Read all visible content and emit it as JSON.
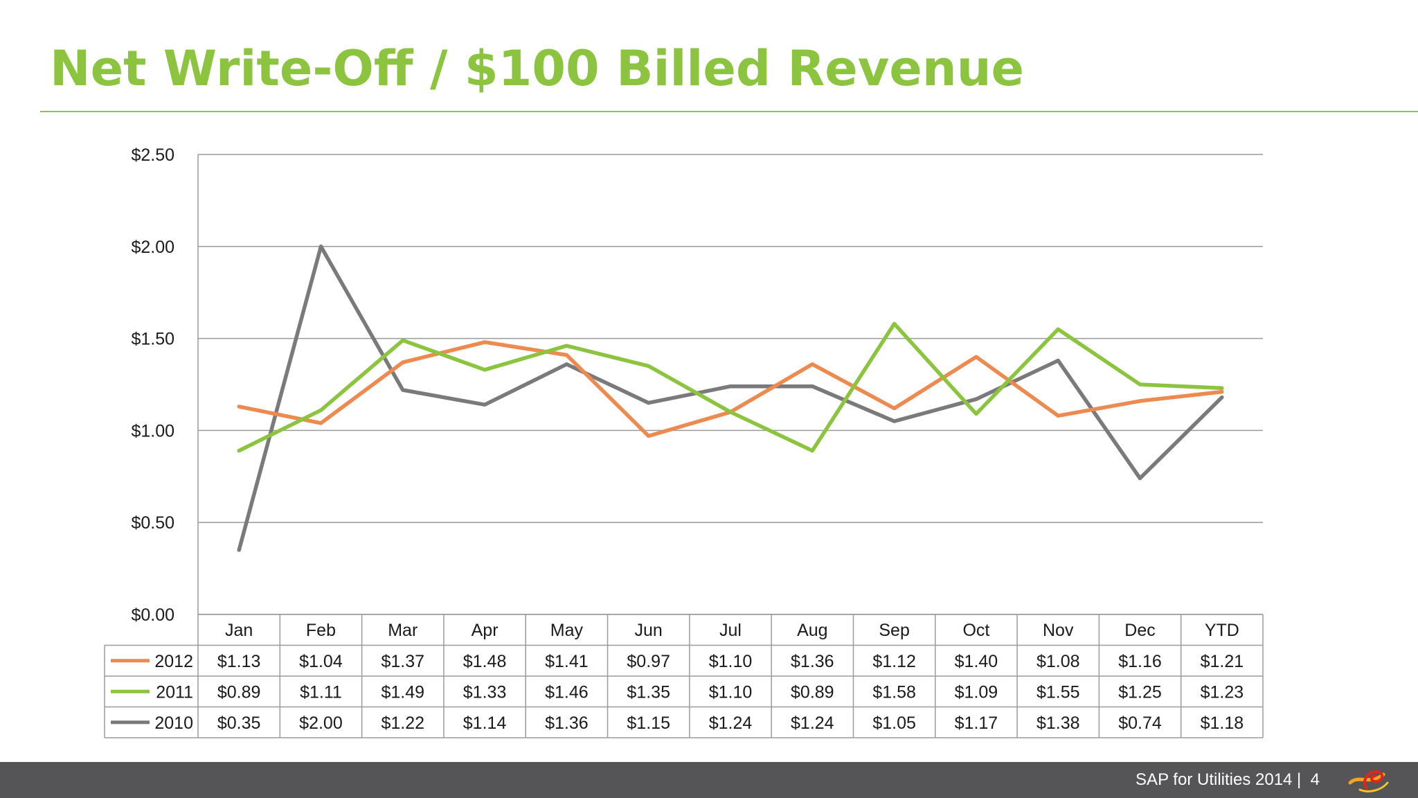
{
  "title": "Net Write-Off / $100 Billed Revenue",
  "footer": {
    "text": "SAP for Utilities 2014 |",
    "page_number": "4"
  },
  "colors": {
    "accent": "#8cc43f",
    "footer_bg": "#555557"
  },
  "chart_data": {
    "type": "line",
    "categories": [
      "Jan",
      "Feb",
      "Mar",
      "Apr",
      "May",
      "Jun",
      "Jul",
      "Aug",
      "Sep",
      "Oct",
      "Nov",
      "Dec",
      "YTD"
    ],
    "ylim": [
      0,
      2.5
    ],
    "yticks": [
      0,
      0.5,
      1.0,
      1.5,
      2.0,
      2.5
    ],
    "ytick_labels": [
      "$0.00",
      "$0.50",
      "$1.00",
      "$1.50",
      "$2.00",
      "$2.50"
    ],
    "grid": true,
    "legend_placement": "data-table-left",
    "series": [
      {
        "name": "2012",
        "color": "#ed8a4f",
        "values": [
          1.13,
          1.04,
          1.37,
          1.48,
          1.41,
          0.97,
          1.1,
          1.36,
          1.12,
          1.4,
          1.08,
          1.16,
          1.21
        ],
        "labels": [
          "$1.13",
          "$1.04",
          "$1.37",
          "$1.48",
          "$1.41",
          "$0.97",
          "$1.10",
          "$1.36",
          "$1.12",
          "$1.40",
          "$1.08",
          "$1.16",
          "$1.21"
        ]
      },
      {
        "name": "2011",
        "color": "#8cc43f",
        "values": [
          0.89,
          1.11,
          1.49,
          1.33,
          1.46,
          1.35,
          1.1,
          0.89,
          1.58,
          1.09,
          1.55,
          1.25,
          1.23
        ],
        "labels": [
          "$0.89",
          "$1.11",
          "$1.49",
          "$1.33",
          "$1.46",
          "$1.35",
          "$1.10",
          "$0.89",
          "$1.58",
          "$1.09",
          "$1.55",
          "$1.25",
          "$1.23"
        ]
      },
      {
        "name": "2010",
        "color": "#7a7a7c",
        "values": [
          0.35,
          2.0,
          1.22,
          1.14,
          1.36,
          1.15,
          1.24,
          1.24,
          1.05,
          1.17,
          1.38,
          0.74,
          1.18
        ],
        "labels": [
          "$0.35",
          "$2.00",
          "$1.22",
          "$1.14",
          "$1.36",
          "$1.15",
          "$1.24",
          "$1.24",
          "$1.05",
          "$1.17",
          "$1.38",
          "$0.74",
          "$1.18"
        ]
      }
    ]
  }
}
